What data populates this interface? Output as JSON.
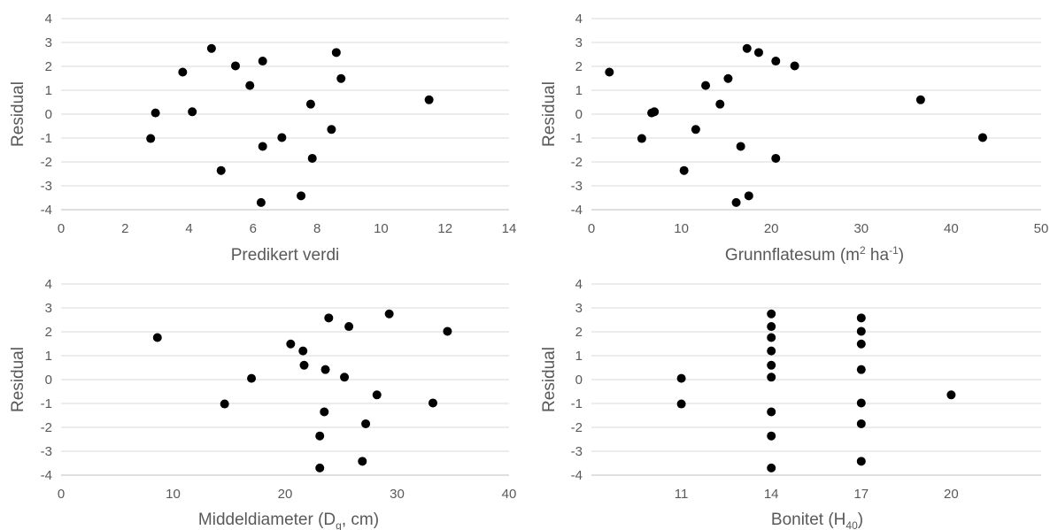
{
  "chart_data": [
    {
      "type": "scatter",
      "xlabel": "Predikert verdi",
      "ylabel": "Residual",
      "xlim": [
        0,
        14
      ],
      "ylim": [
        -4,
        4
      ],
      "xticks": [
        "0",
        "2",
        "4",
        "6",
        "8",
        "10",
        "12",
        "14"
      ],
      "yticks": [
        "4",
        "3",
        "2",
        "1",
        "0",
        "-1",
        "-2",
        "-3",
        "-4"
      ],
      "grid": true,
      "points": [
        {
          "x": 4.7,
          "y": 2.75
        },
        {
          "x": 8.6,
          "y": 2.58
        },
        {
          "x": 6.3,
          "y": 2.22
        },
        {
          "x": 5.45,
          "y": 2.02
        },
        {
          "x": 3.8,
          "y": 1.76
        },
        {
          "x": 8.75,
          "y": 1.49
        },
        {
          "x": 5.9,
          "y": 1.2
        },
        {
          "x": 11.5,
          "y": 0.6
        },
        {
          "x": 7.8,
          "y": 0.42
        },
        {
          "x": 4.1,
          "y": 0.1
        },
        {
          "x": 2.95,
          "y": 0.05
        },
        {
          "x": 8.45,
          "y": -0.64
        },
        {
          "x": 2.8,
          "y": -1.02
        },
        {
          "x": 6.9,
          "y": -0.98
        },
        {
          "x": 6.3,
          "y": -1.35
        },
        {
          "x": 7.85,
          "y": -1.85
        },
        {
          "x": 5.0,
          "y": -2.36
        },
        {
          "x": 7.5,
          "y": -3.42
        },
        {
          "x": 6.25,
          "y": -3.7
        }
      ]
    },
    {
      "type": "scatter",
      "xlabel": "Grunnflatesum (m² ha⁻¹)",
      "ylabel": "Residual",
      "xlim": [
        0,
        50
      ],
      "ylim": [
        -4,
        4
      ],
      "xticks": [
        "0",
        "10",
        "20",
        "30",
        "40",
        "50"
      ],
      "yticks": [
        "4",
        "3",
        "2",
        "1",
        "0",
        "-1",
        "-2",
        "-3",
        "-4"
      ],
      "grid": true,
      "points": [
        {
          "x": 17.3,
          "y": 2.75
        },
        {
          "x": 18.6,
          "y": 2.58
        },
        {
          "x": 20.5,
          "y": 2.22
        },
        {
          "x": 22.6,
          "y": 2.02
        },
        {
          "x": 2.0,
          "y": 1.76
        },
        {
          "x": 15.2,
          "y": 1.49
        },
        {
          "x": 12.7,
          "y": 1.2
        },
        {
          "x": 36.6,
          "y": 0.6
        },
        {
          "x": 14.3,
          "y": 0.42
        },
        {
          "x": 7.0,
          "y": 0.1
        },
        {
          "x": 6.7,
          "y": 0.05
        },
        {
          "x": 11.6,
          "y": -0.64
        },
        {
          "x": 5.6,
          "y": -1.02
        },
        {
          "x": 43.5,
          "y": -0.98
        },
        {
          "x": 16.6,
          "y": -1.35
        },
        {
          "x": 20.5,
          "y": -1.85
        },
        {
          "x": 10.3,
          "y": -2.36
        },
        {
          "x": 17.5,
          "y": -3.42
        },
        {
          "x": 16.1,
          "y": -3.7
        }
      ]
    },
    {
      "type": "scatter",
      "xlabel": "Middeldiameter (Dg, cm)",
      "ylabel": "Residual",
      "xlim": [
        0,
        40
      ],
      "ylim": [
        -4,
        4
      ],
      "xticks": [
        "0",
        "10",
        "20",
        "30",
        "40"
      ],
      "yticks": [
        "4",
        "3",
        "2",
        "1",
        "0",
        "-1",
        "-2",
        "-3",
        "-4"
      ],
      "grid": true,
      "points": [
        {
          "x": 29.3,
          "y": 2.75
        },
        {
          "x": 23.9,
          "y": 2.58
        },
        {
          "x": 25.7,
          "y": 2.22
        },
        {
          "x": 34.5,
          "y": 2.02
        },
        {
          "x": 8.6,
          "y": 1.76
        },
        {
          "x": 20.5,
          "y": 1.49
        },
        {
          "x": 21.6,
          "y": 1.2
        },
        {
          "x": 21.7,
          "y": 0.6
        },
        {
          "x": 23.6,
          "y": 0.42
        },
        {
          "x": 25.3,
          "y": 0.1
        },
        {
          "x": 17.0,
          "y": 0.05
        },
        {
          "x": 28.2,
          "y": -0.64
        },
        {
          "x": 14.6,
          "y": -1.02
        },
        {
          "x": 33.2,
          "y": -0.98
        },
        {
          "x": 23.5,
          "y": -1.35
        },
        {
          "x": 27.2,
          "y": -1.85
        },
        {
          "x": 23.1,
          "y": -2.36
        },
        {
          "x": 26.9,
          "y": -3.42
        },
        {
          "x": 23.1,
          "y": -3.7
        }
      ]
    },
    {
      "type": "scatter",
      "xlabel": "Bonitet (H40)",
      "ylabel": "Residual",
      "xlim": [
        8,
        23
      ],
      "ylim": [
        -4,
        4
      ],
      "xtick_values": [
        11,
        14,
        17,
        20
      ],
      "xticks": [
        "11",
        "14",
        "17",
        "20"
      ],
      "yticks": [
        "4",
        "3",
        "2",
        "1",
        "0",
        "-1",
        "-2",
        "-3",
        "-4"
      ],
      "grid": true,
      "points": [
        {
          "x": 14,
          "y": 2.75
        },
        {
          "x": 17,
          "y": 2.58
        },
        {
          "x": 14,
          "y": 2.22
        },
        {
          "x": 17,
          "y": 2.02
        },
        {
          "x": 14,
          "y": 1.76
        },
        {
          "x": 17,
          "y": 1.49
        },
        {
          "x": 14,
          "y": 1.2
        },
        {
          "x": 14,
          "y": 0.6
        },
        {
          "x": 17,
          "y": 0.42
        },
        {
          "x": 14,
          "y": 0.1
        },
        {
          "x": 11,
          "y": 0.05
        },
        {
          "x": 20,
          "y": -0.64
        },
        {
          "x": 11,
          "y": -1.02
        },
        {
          "x": 17,
          "y": -0.98
        },
        {
          "x": 14,
          "y": -1.35
        },
        {
          "x": 17,
          "y": -1.85
        },
        {
          "x": 14,
          "y": -2.36
        },
        {
          "x": 17,
          "y": -3.42
        },
        {
          "x": 14,
          "y": -3.7
        }
      ]
    }
  ]
}
